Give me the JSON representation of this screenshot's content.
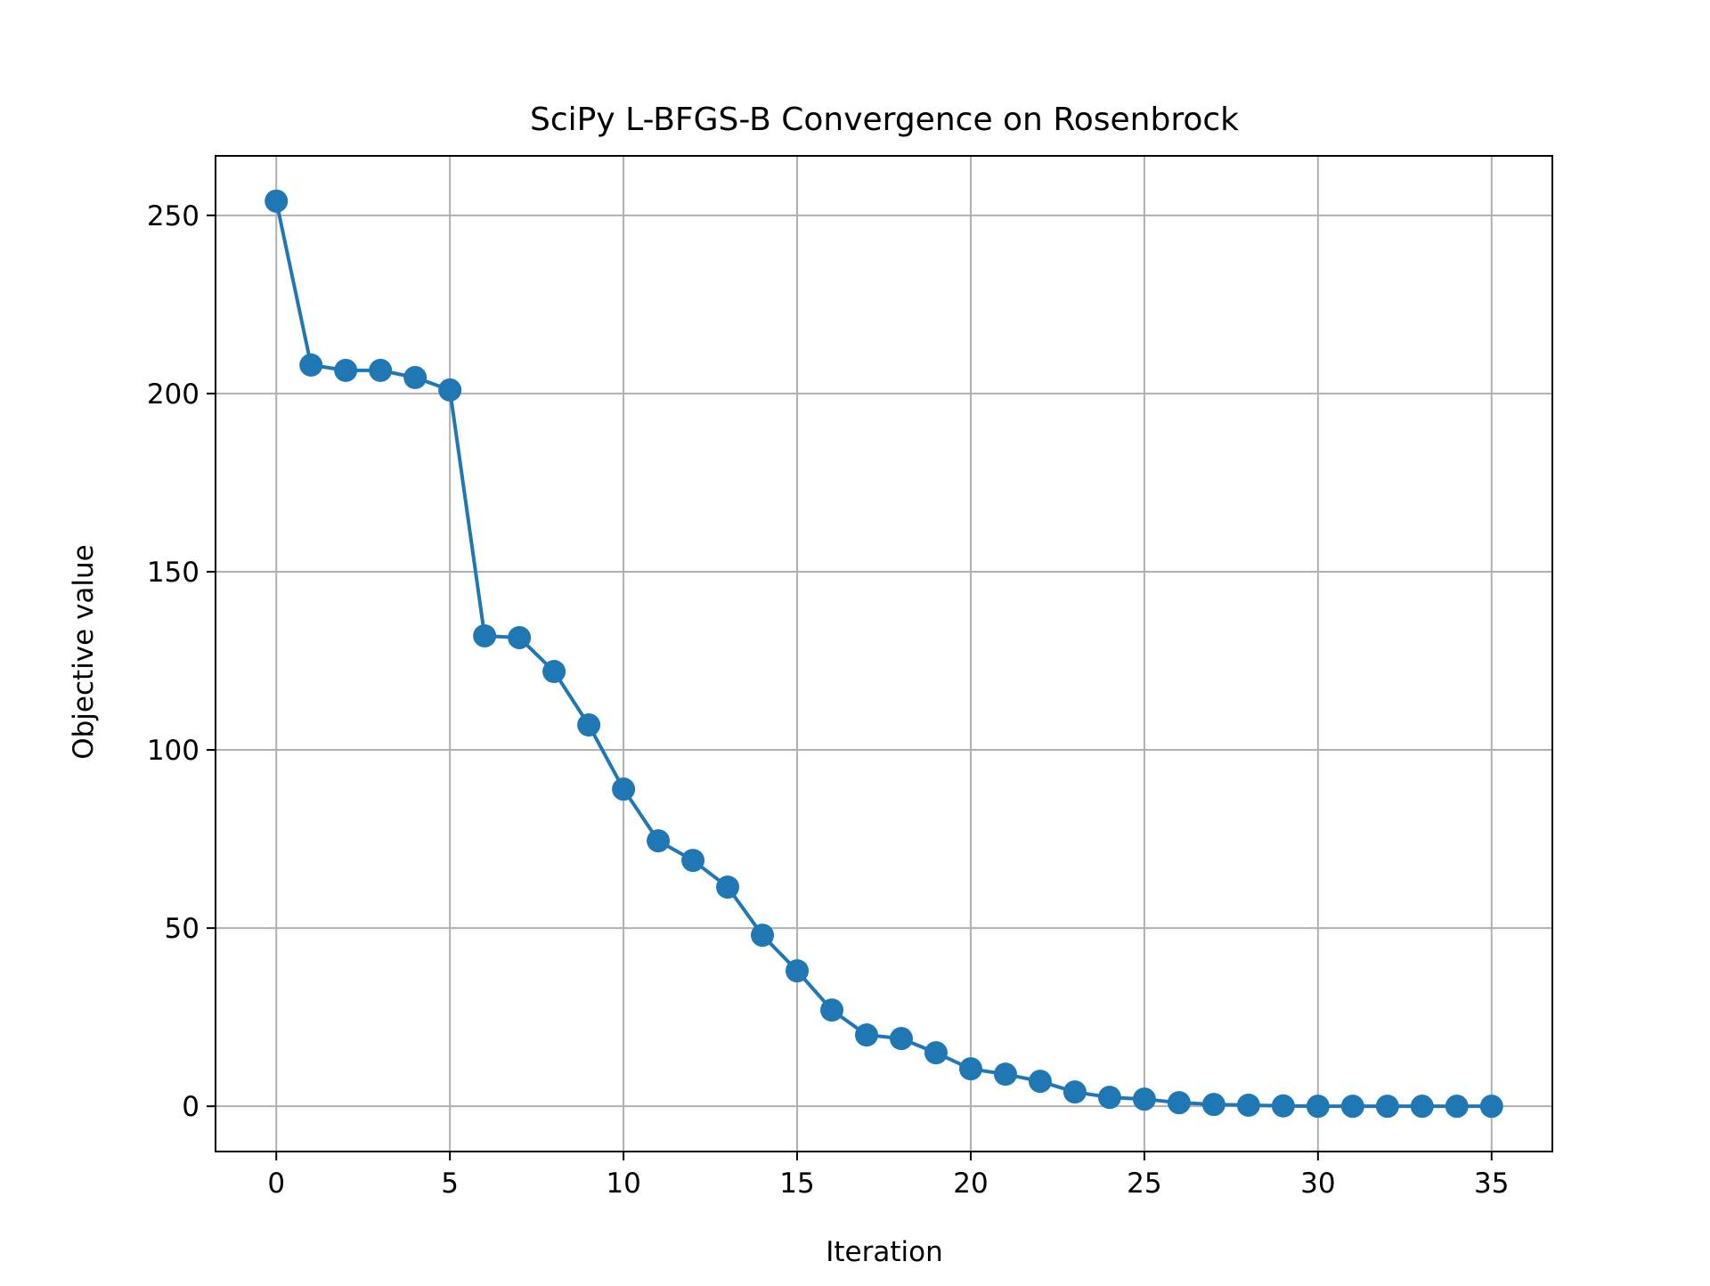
{
  "chart_data": {
    "type": "line",
    "title": "SciPy L-BFGS-B Convergence on Rosenbrock",
    "xlabel": "Iteration",
    "ylabel": "Objective value",
    "xlim": [
      -1.75,
      36.75
    ],
    "ylim": [
      -12.7,
      266.7
    ],
    "xticks": [
      0,
      5,
      10,
      15,
      20,
      25,
      30,
      35
    ],
    "yticks": [
      0,
      50,
      100,
      150,
      200,
      250
    ],
    "grid": true,
    "marker": "circle",
    "line_color": "#1f77b4",
    "series": [
      {
        "x": [
          0,
          1,
          2,
          3,
          4,
          5,
          6,
          7,
          8,
          9,
          10,
          11,
          12,
          13,
          14,
          15,
          16,
          17,
          18,
          19,
          20,
          21,
          22,
          23,
          24,
          25,
          26,
          27,
          28,
          29,
          30,
          31,
          32,
          33,
          34,
          35
        ],
        "values": [
          254,
          208,
          206.5,
          206.5,
          204.5,
          201,
          132,
          131.5,
          122,
          107,
          89,
          74.5,
          69,
          61.5,
          48,
          38,
          27,
          20,
          19,
          15,
          10.5,
          9,
          7,
          4,
          2.5,
          2,
          1,
          0.5,
          0.3,
          0.1,
          0,
          0,
          0,
          0,
          0,
          0
        ]
      }
    ]
  }
}
